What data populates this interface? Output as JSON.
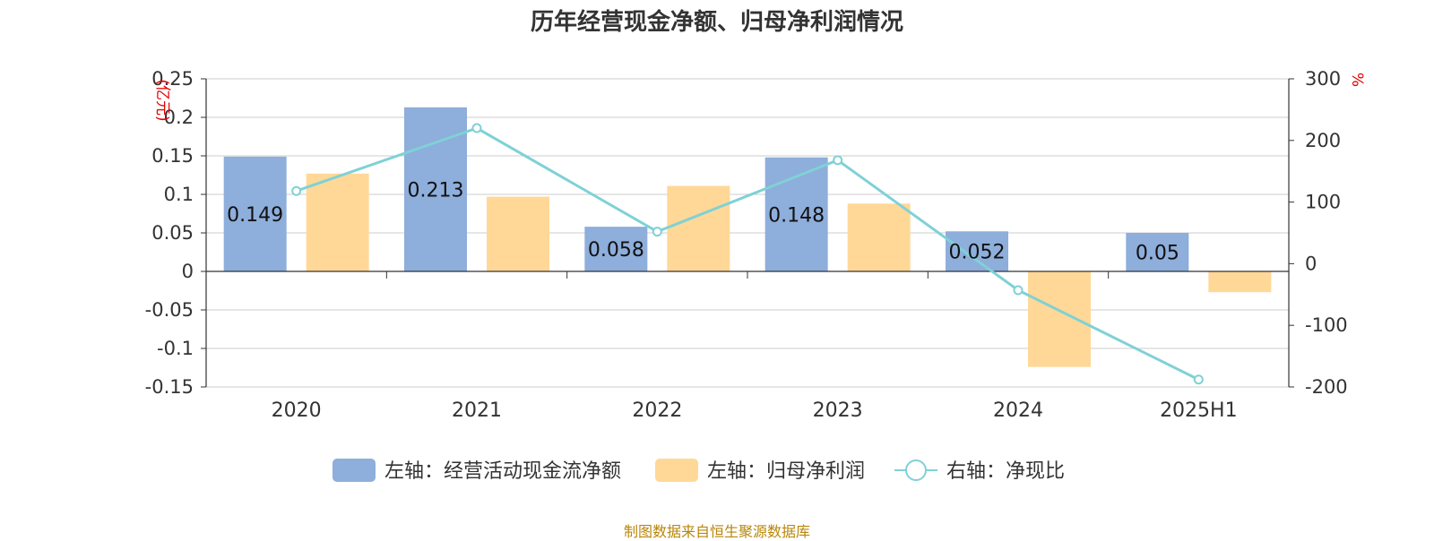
{
  "title": "历年经营现金净额、归母净利润情况",
  "footer": "制图数据来自恒生聚源数据库",
  "chart_data": {
    "type": "bar",
    "categories": [
      "2020",
      "2021",
      "2022",
      "2023",
      "2024",
      "2025H1"
    ],
    "series": [
      {
        "name": "左轴：经营活动现金流净额",
        "axis": "left",
        "type": "bar",
        "color": "#8eaedb",
        "values": [
          0.149,
          0.213,
          0.058,
          0.148,
          0.052,
          0.05
        ],
        "labels": [
          "0.149",
          "0.213",
          "0.058",
          "0.148",
          "0.052",
          "0.05"
        ]
      },
      {
        "name": "左轴：归母净利润",
        "axis": "left",
        "type": "bar",
        "color": "#ffd897",
        "values": [
          0.127,
          0.097,
          0.111,
          0.088,
          -0.124,
          -0.027
        ]
      },
      {
        "name": "右轴：净现比",
        "axis": "right",
        "type": "line",
        "color": "#7fd1d6",
        "values": [
          118,
          220,
          52,
          168,
          -43,
          -188
        ]
      }
    ],
    "left_axis": {
      "unit": "(亿元)",
      "min": -0.15,
      "max": 0.25,
      "ticks": [
        0.25,
        0.2,
        0.15,
        0.1,
        0.05,
        0,
        -0.05,
        -0.1,
        -0.15
      ],
      "tick_labels": [
        "0.25",
        "0.2",
        "0.15",
        "0.1",
        "0.05",
        "0",
        "-0.05",
        "-0.1",
        "-0.15"
      ]
    },
    "right_axis": {
      "unit": "%",
      "min": -200,
      "max": 300,
      "ticks": [
        300,
        200,
        100,
        0,
        -100,
        -200
      ],
      "tick_labels": [
        "300",
        "200",
        "100",
        "0",
        "-100",
        "-200"
      ]
    },
    "grid": true,
    "legend_position": "bottom"
  }
}
